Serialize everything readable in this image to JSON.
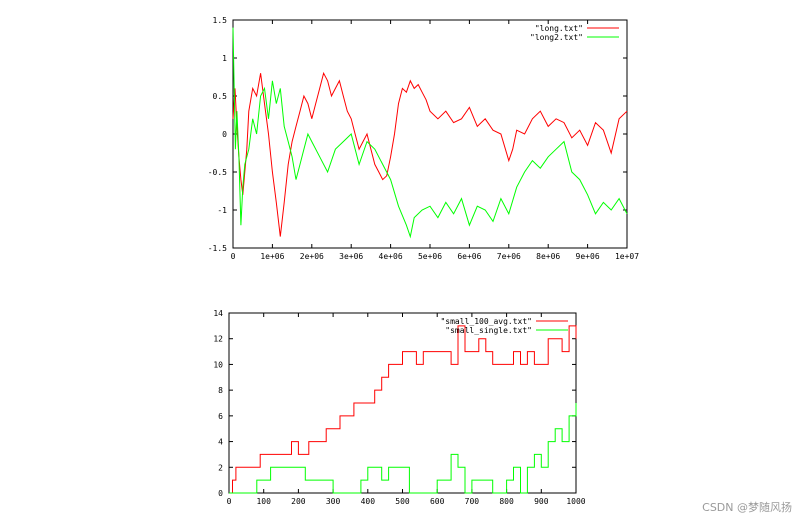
{
  "chart_data": [
    {
      "type": "line",
      "xlim": [
        0,
        10000000
      ],
      "ylim": [
        -1.5,
        1.5
      ],
      "x_ticks": [
        0,
        1000000,
        2000000,
        3000000,
        4000000,
        5000000,
        6000000,
        7000000,
        8000000,
        9000000,
        10000000
      ],
      "x_tick_labels": [
        "0",
        "1e+06",
        "2e+06",
        "3e+06",
        "4e+06",
        "5e+06",
        "6e+06",
        "7e+06",
        "8e+06",
        "9e+06",
        "1e+07"
      ],
      "y_ticks": [
        -1.5,
        -1,
        -0.5,
        0,
        0.5,
        1,
        1.5
      ],
      "y_tick_labels": [
        "-1.5",
        "-1",
        "-0.5",
        "0",
        "0.5",
        "1",
        "1.5"
      ],
      "legend_position": "top-right",
      "grid": false,
      "series": [
        {
          "name": "\"long.txt\"",
          "color": "#ff0000",
          "x": [
            0,
            50000,
            100000,
            150000,
            200000,
            250000,
            300000,
            350000,
            400000,
            500000,
            600000,
            700000,
            800000,
            900000,
            1000000,
            1100000,
            1200000,
            1300000,
            1400000,
            1500000,
            1600000,
            1700000,
            1800000,
            1900000,
            2000000,
            2100000,
            2200000,
            2300000,
            2400000,
            2500000,
            2600000,
            2700000,
            2800000,
            2900000,
            3000000,
            3100000,
            3200000,
            3300000,
            3400000,
            3500000,
            3600000,
            3700000,
            3800000,
            3900000,
            4000000,
            4100000,
            4200000,
            4300000,
            4400000,
            4500000,
            4600000,
            4700000,
            4800000,
            4900000,
            5000000,
            5200000,
            5400000,
            5600000,
            5800000,
            6000000,
            6200000,
            6400000,
            6600000,
            6800000,
            7000000,
            7100000,
            7200000,
            7400000,
            7600000,
            7800000,
            8000000,
            8200000,
            8400000,
            8600000,
            8800000,
            9000000,
            9200000,
            9400000,
            9600000,
            9800000,
            10000000
          ],
          "y": [
            0.2,
            0.6,
            0.1,
            -0.3,
            -0.6,
            -0.8,
            -0.5,
            -0.2,
            0.3,
            0.6,
            0.5,
            0.8,
            0.4,
            0.0,
            -0.5,
            -0.9,
            -1.35,
            -0.9,
            -0.4,
            -0.1,
            0.1,
            0.3,
            0.5,
            0.4,
            0.2,
            0.4,
            0.6,
            0.8,
            0.7,
            0.5,
            0.6,
            0.7,
            0.5,
            0.3,
            0.2,
            0.0,
            -0.2,
            -0.1,
            0.0,
            -0.2,
            -0.4,
            -0.5,
            -0.6,
            -0.55,
            -0.3,
            0.0,
            0.4,
            0.6,
            0.55,
            0.7,
            0.6,
            0.65,
            0.55,
            0.45,
            0.3,
            0.2,
            0.3,
            0.15,
            0.2,
            0.35,
            0.1,
            0.2,
            0.05,
            0.0,
            -0.35,
            -0.2,
            0.05,
            0.0,
            0.2,
            0.3,
            0.1,
            0.2,
            0.15,
            -0.05,
            0.05,
            -0.15,
            0.15,
            0.05,
            -0.25,
            0.2,
            0.3
          ]
        },
        {
          "name": "\"long2.txt\"",
          "color": "#00ff00",
          "x": [
            0,
            30000,
            60000,
            100000,
            150000,
            200000,
            250000,
            300000,
            400000,
            500000,
            600000,
            700000,
            800000,
            900000,
            1000000,
            1100000,
            1200000,
            1300000,
            1400000,
            1500000,
            1600000,
            1700000,
            1800000,
            1900000,
            2000000,
            2200000,
            2400000,
            2600000,
            2800000,
            3000000,
            3200000,
            3400000,
            3600000,
            3800000,
            4000000,
            4200000,
            4400000,
            4500000,
            4600000,
            4800000,
            5000000,
            5200000,
            5400000,
            5600000,
            5800000,
            6000000,
            6200000,
            6400000,
            6600000,
            6800000,
            7000000,
            7200000,
            7400000,
            7600000,
            7800000,
            8000000,
            8200000,
            8400000,
            8600000,
            8800000,
            9000000,
            9200000,
            9400000,
            9600000,
            9800000,
            10000000
          ],
          "y": [
            1.4,
            0.6,
            -0.2,
            0.3,
            -0.3,
            -1.2,
            -0.7,
            -0.4,
            -0.2,
            0.2,
            0.0,
            0.5,
            0.6,
            0.2,
            0.7,
            0.4,
            0.6,
            0.1,
            -0.1,
            -0.3,
            -0.6,
            -0.4,
            -0.2,
            0.0,
            -0.1,
            -0.3,
            -0.5,
            -0.2,
            -0.1,
            0.0,
            -0.4,
            -0.1,
            -0.2,
            -0.4,
            -0.6,
            -0.95,
            -1.2,
            -1.35,
            -1.1,
            -1.0,
            -0.95,
            -1.1,
            -0.9,
            -1.05,
            -0.85,
            -1.2,
            -0.95,
            -1.0,
            -1.15,
            -0.85,
            -1.05,
            -0.7,
            -0.5,
            -0.35,
            -0.45,
            -0.3,
            -0.2,
            -0.1,
            -0.5,
            -0.6,
            -0.8,
            -1.05,
            -0.9,
            -1.0,
            -0.85,
            -1.05
          ]
        }
      ]
    },
    {
      "type": "line",
      "xlim": [
        0,
        1000
      ],
      "ylim": [
        0,
        14
      ],
      "x_ticks": [
        0,
        100,
        200,
        300,
        400,
        500,
        600,
        700,
        800,
        900,
        1000
      ],
      "x_tick_labels": [
        "0",
        "100",
        "200",
        "300",
        "400",
        "500",
        "600",
        "700",
        "800",
        "900",
        "1000"
      ],
      "y_ticks": [
        0,
        2,
        4,
        6,
        8,
        10,
        12,
        14
      ],
      "y_tick_labels": [
        "0",
        "2",
        "4",
        "6",
        "8",
        "10",
        "12",
        "14"
      ],
      "legend_position": "top-right",
      "grid": false,
      "series": [
        {
          "name": "\"small_100_avg.txt\"",
          "color": "#ff0000",
          "x": [
            0,
            10,
            20,
            30,
            60,
            90,
            140,
            180,
            200,
            230,
            260,
            280,
            300,
            320,
            340,
            360,
            380,
            400,
            420,
            440,
            460,
            480,
            500,
            520,
            540,
            560,
            600,
            640,
            660,
            680,
            700,
            720,
            740,
            760,
            780,
            800,
            820,
            840,
            860,
            880,
            900,
            920,
            940,
            960,
            980,
            1000
          ],
          "y": [
            0,
            1,
            2,
            2,
            2,
            3,
            3,
            4,
            3,
            4,
            4,
            5,
            5,
            6,
            6,
            7,
            7,
            7,
            8,
            9,
            10,
            10,
            11,
            11,
            10,
            11,
            11,
            10,
            13,
            11,
            11,
            12,
            11,
            10,
            10,
            10,
            11,
            10,
            11,
            10,
            10,
            12,
            12,
            11,
            13,
            12
          ]
        },
        {
          "name": "\"small_single.txt\"",
          "color": "#00ff00",
          "x": [
            0,
            40,
            80,
            120,
            170,
            220,
            260,
            300,
            340,
            380,
            400,
            420,
            440,
            460,
            520,
            560,
            600,
            640,
            660,
            680,
            700,
            720,
            760,
            800,
            820,
            840,
            860,
            880,
            900,
            920,
            940,
            960,
            980,
            1000
          ],
          "y": [
            0,
            0,
            1,
            2,
            2,
            1,
            1,
            0,
            0,
            1,
            2,
            2,
            1,
            2,
            0,
            0,
            1,
            3,
            2,
            0,
            1,
            1,
            0,
            1,
            2,
            0,
            2,
            3,
            2,
            4,
            5,
            4,
            6,
            7
          ]
        }
      ]
    }
  ],
  "footer": {
    "watermark": "CSDN @梦随风扬"
  }
}
